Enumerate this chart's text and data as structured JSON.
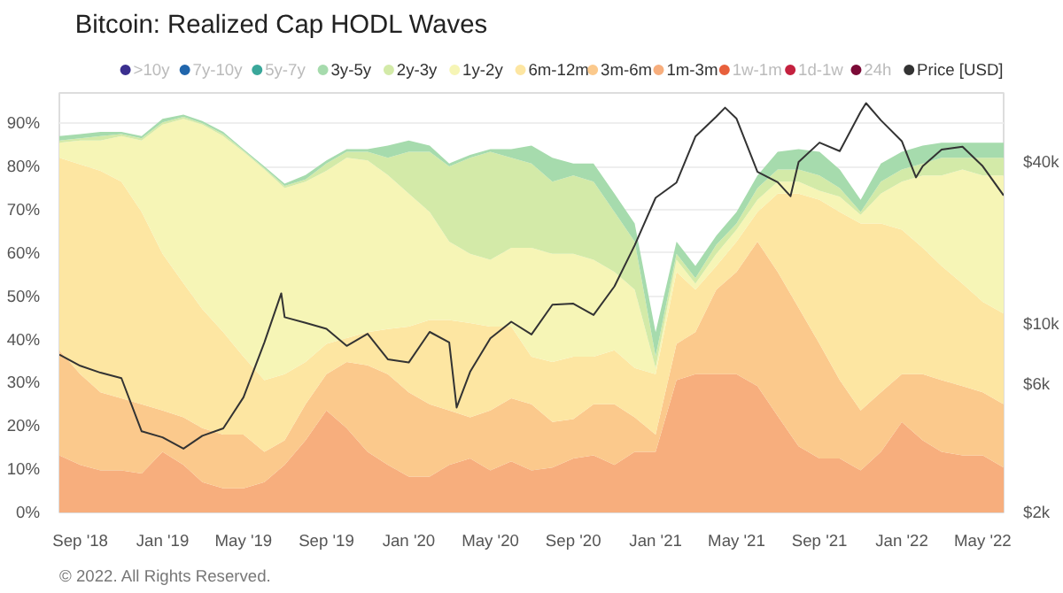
{
  "chart_data": {
    "type": "area",
    "stacked": true,
    "title": "Bitcoin: Realized Cap HODL Waves",
    "annotations": [
      "© 2022. All Rights Reserved."
    ],
    "x": [
      "2018-08-01",
      "2018-09-01",
      "2018-10-01",
      "2018-11-01",
      "2018-12-01",
      "2019-01-01",
      "2019-02-01",
      "2019-03-01",
      "2019-04-01",
      "2019-05-01",
      "2019-06-01",
      "2019-07-01",
      "2019-08-01",
      "2019-09-01",
      "2019-10-01",
      "2019-11-01",
      "2019-12-01",
      "2020-01-01",
      "2020-02-01",
      "2020-03-01",
      "2020-04-01",
      "2020-05-01",
      "2020-06-01",
      "2020-07-01",
      "2020-08-01",
      "2020-09-01",
      "2020-10-01",
      "2020-11-01",
      "2020-12-01",
      "2021-01-01",
      "2021-02-01",
      "2021-03-01",
      "2021-04-01",
      "2021-05-01",
      "2021-06-01",
      "2021-07-01",
      "2021-08-01",
      "2021-09-01",
      "2021-10-01",
      "2021-11-01",
      "2021-12-01",
      "2022-01-01",
      "2022-02-01",
      "2022-03-01",
      "2022-04-01",
      "2022-05-01",
      "2022-06-01"
    ],
    "xlim": [
      "2018-08-01",
      "2022-06-01"
    ],
    "xticks": [
      {
        "value": "2018-09-01",
        "label": "Sep '18"
      },
      {
        "value": "2019-01-01",
        "label": "Jan '19"
      },
      {
        "value": "2019-05-01",
        "label": "May '19"
      },
      {
        "value": "2019-09-01",
        "label": "Sep '19"
      },
      {
        "value": "2020-01-01",
        "label": "Jan '20"
      },
      {
        "value": "2020-05-01",
        "label": "May '20"
      },
      {
        "value": "2020-09-01",
        "label": "Sep '20"
      },
      {
        "value": "2021-01-01",
        "label": "Jan '21"
      },
      {
        "value": "2021-05-01",
        "label": "May '21"
      },
      {
        "value": "2021-09-01",
        "label": "Sep '21"
      },
      {
        "value": "2022-01-01",
        "label": "Jan '22"
      },
      {
        "value": "2022-05-01",
        "label": "May '22"
      }
    ],
    "ylim": [
      0,
      97
    ],
    "yticks": [
      {
        "value": 0,
        "label": "0%"
      },
      {
        "value": 10,
        "label": "10%"
      },
      {
        "value": 20,
        "label": "20%"
      },
      {
        "value": 30,
        "label": "30%"
      },
      {
        "value": 40,
        "label": "40%"
      },
      {
        "value": 50,
        "label": "50%"
      },
      {
        "value": 60,
        "label": "60%"
      },
      {
        "value": 70,
        "label": "70%"
      },
      {
        "value": 80,
        "label": "80%"
      },
      {
        "value": 90,
        "label": "90%"
      }
    ],
    "y2lim": [
      2000,
      72000
    ],
    "y2ticks": [
      {
        "value": 2000,
        "label": "$2k"
      },
      {
        "value": 6000,
        "label": "$6k"
      },
      {
        "value": 10000,
        "label": "$10k"
      },
      {
        "value": 40000,
        "label": "$40k"
      }
    ],
    "log": "y2",
    "grid": "y",
    "legend": "top",
    "series": [
      {
        "name": "24h",
        "color": "#7b0a37",
        "values": [
          null,
          null,
          null,
          null,
          null,
          null,
          null,
          null,
          null,
          null,
          null,
          null,
          null,
          null,
          null,
          null,
          null,
          null,
          null,
          null,
          null,
          null,
          null,
          null,
          null,
          null,
          null,
          null,
          null,
          null,
          null,
          null,
          null,
          null,
          null,
          null,
          null,
          null,
          null,
          null,
          null,
          null,
          null,
          null,
          null,
          null,
          null
        ]
      },
      {
        "name": "1d-1w",
        "color": "#c4213f",
        "values": [
          null,
          null,
          null,
          null,
          null,
          null,
          null,
          null,
          null,
          null,
          null,
          null,
          null,
          null,
          null,
          null,
          null,
          null,
          null,
          null,
          null,
          null,
          null,
          null,
          null,
          null,
          null,
          null,
          null,
          null,
          null,
          null,
          null,
          null,
          null,
          null,
          null,
          null,
          null,
          null,
          null,
          null,
          null,
          null,
          null,
          null,
          null
        ]
      },
      {
        "name": "1w-1m",
        "color": "#e8603c",
        "values": [
          null,
          null,
          null,
          null,
          null,
          null,
          null,
          null,
          null,
          null,
          null,
          null,
          null,
          null,
          null,
          null,
          null,
          null,
          null,
          null,
          null,
          null,
          null,
          null,
          null,
          null,
          null,
          null,
          null,
          null,
          null,
          null,
          null,
          null,
          null,
          null,
          null,
          null,
          null,
          null,
          null,
          null,
          null,
          null,
          null,
          null,
          null
        ]
      },
      {
        "name": "1m-3m",
        "color": "#f7ae7d",
        "values": [
          13.2,
          11,
          9.7,
          9.7,
          9,
          14,
          11,
          7,
          5.6,
          5.6,
          7,
          11,
          16.7,
          23.6,
          19.5,
          14,
          11,
          8.3,
          8.3,
          11,
          12.5,
          9.7,
          11.8,
          9.7,
          10.4,
          12.5,
          13.2,
          11,
          14,
          14,
          30.6,
          32,
          32,
          32,
          29.2,
          22.3,
          15.3,
          12.5,
          12.5,
          9.7,
          14,
          20.9,
          16.7,
          14,
          13.2,
          13.2,
          10.4
        ]
      },
      {
        "name": "3m-6m",
        "color": "#fbc98c",
        "values": [
          24.3,
          21,
          18.1,
          16.7,
          16,
          9.6,
          11,
          12.5,
          12.4,
          12.4,
          7,
          5.7,
          8.3,
          8.4,
          15.3,
          20,
          21,
          19.5,
          16.7,
          12.6,
          9.5,
          13.9,
          14.6,
          15.3,
          10.5,
          9.1,
          11.8,
          14,
          8,
          4,
          8.4,
          9.7,
          19.5,
          23.6,
          33.4,
          33.3,
          32,
          26.5,
          18.1,
          13.9,
          13.8,
          11.1,
          15.3,
          16.6,
          16,
          14.6,
          14.6
        ]
      },
      {
        "name": "6m-12m",
        "color": "#fde6a2",
        "values": [
          44.5,
          48.5,
          51.2,
          50.1,
          44.5,
          36.2,
          31,
          27.5,
          23.7,
          18,
          16.6,
          15.3,
          9.8,
          7,
          5.5,
          7.7,
          10.4,
          15.2,
          19.5,
          20.9,
          21.8,
          19.4,
          16.6,
          11,
          13.9,
          14.4,
          11,
          12.5,
          11.4,
          14,
          16.6,
          9.8,
          5.5,
          7,
          6.9,
          18.1,
          26.4,
          33.3,
          38.9,
          43.2,
          39,
          33.4,
          29.2,
          26.4,
          23.7,
          20.9,
          21
        ]
      },
      {
        "name": "1y-2y",
        "color": "#f6f5b6",
        "values": [
          3.5,
          5.5,
          7,
          10.5,
          16.5,
          29.9,
          38,
          42.7,
          45.3,
          47.4,
          48.7,
          43,
          41.7,
          40,
          41.7,
          39.7,
          35.6,
          30.7,
          25,
          18.1,
          16,
          15.4,
          18.2,
          25.2,
          25,
          23.8,
          22.4,
          18.1,
          18.1,
          1.4,
          2.8,
          1.4,
          2.8,
          2.8,
          2.8,
          2.8,
          2.8,
          2.1,
          3.5,
          2,
          6.9,
          11.1,
          16.7,
          20.9,
          26.4,
          29.2,
          31.9
        ]
      },
      {
        "name": "2y-3y",
        "color": "#d3eaa8",
        "values": [
          0.5,
          0.5,
          1,
          0.5,
          0.5,
          0.5,
          0.5,
          0.3,
          0.5,
          0.3,
          0.3,
          0.5,
          0.5,
          1.7,
          1.4,
          2,
          4,
          9.7,
          13.9,
          17.4,
          22.2,
          25,
          20.8,
          19.5,
          16.7,
          18.1,
          18.1,
          13.9,
          11.1,
          2.7,
          1.4,
          1.3,
          2.1,
          1.4,
          2.7,
          2.8,
          2.8,
          3.5,
          2,
          0.7,
          2.8,
          2.8,
          2.8,
          4.1,
          2.7,
          4.1,
          4.1
        ]
      },
      {
        "name": "3y-5y",
        "color": "#a6dbad",
        "values": [
          1,
          1,
          1,
          0.5,
          0.5,
          0.8,
          0.5,
          0.5,
          0.5,
          0.3,
          0.4,
          0.5,
          1,
          0.7,
          0.6,
          0.6,
          2.8,
          2.6,
          1.4,
          0.7,
          0.7,
          0.6,
          2,
          4.1,
          5.5,
          2.8,
          4.2,
          4.2,
          4.2,
          5.6,
          2.8,
          2.8,
          2.1,
          2.7,
          2.9,
          4.1,
          4.7,
          5.5,
          4.3,
          2.8,
          4.2,
          4.1,
          4.1,
          3.5,
          3.5,
          3.5,
          3.5
        ]
      },
      {
        "name": "5y-7y",
        "color": "#3aa79a",
        "values": [
          null,
          null,
          null,
          null,
          null,
          null,
          null,
          null,
          null,
          null,
          null,
          null,
          null,
          null,
          null,
          null,
          null,
          null,
          null,
          null,
          null,
          null,
          null,
          null,
          null,
          null,
          null,
          null,
          null,
          null,
          null,
          null,
          null,
          null,
          null,
          null,
          null,
          null,
          null,
          null,
          null,
          null,
          null,
          null,
          null,
          null,
          null
        ]
      },
      {
        "name": "7y-10y",
        "color": "#2166ac",
        "values": [
          null,
          null,
          null,
          null,
          null,
          null,
          null,
          null,
          null,
          null,
          null,
          null,
          null,
          null,
          null,
          null,
          null,
          null,
          null,
          null,
          null,
          null,
          null,
          null,
          null,
          null,
          null,
          null,
          null,
          null,
          null,
          null,
          null,
          null,
          null,
          null,
          null,
          null,
          null,
          null,
          null,
          null,
          null,
          null,
          null,
          null,
          null
        ]
      },
      {
        "name": ">10y",
        "color": "#3b2f8f",
        "values": [
          null,
          null,
          null,
          null,
          null,
          null,
          null,
          null,
          null,
          null,
          null,
          null,
          null,
          null,
          null,
          null,
          null,
          null,
          null,
          null,
          null,
          null,
          null,
          null,
          null,
          null,
          null,
          null,
          null,
          null,
          null,
          null,
          null,
          null,
          null,
          null,
          null,
          null,
          null,
          null,
          null,
          null,
          null,
          null,
          null,
          null,
          null
        ]
      },
      {
        "name": "Price [USD]",
        "color": "#333333",
        "type": "line",
        "axis": "y2",
        "x": [
          "2018-08-01",
          "2018-09-01",
          "2018-10-01",
          "2018-11-01",
          "2018-12-01",
          "2019-01-01",
          "2019-02-01",
          "2019-03-01",
          "2019-04-01",
          "2019-05-01",
          "2019-06-01",
          "2019-06-26",
          "2019-07-01",
          "2019-08-01",
          "2019-09-01",
          "2019-10-01",
          "2019-11-01",
          "2019-12-01",
          "2020-01-01",
          "2020-02-01",
          "2020-03-01",
          "2020-03-12",
          "2020-04-01",
          "2020-05-01",
          "2020-06-01",
          "2020-07-01",
          "2020-08-01",
          "2020-09-01",
          "2020-10-01",
          "2020-11-01",
          "2020-12-01",
          "2021-01-01",
          "2021-02-01",
          "2021-03-01",
          "2021-04-01",
          "2021-04-14",
          "2021-05-01",
          "2021-06-01",
          "2021-07-01",
          "2021-07-20",
          "2021-08-01",
          "2021-09-01",
          "2021-10-01",
          "2021-11-01",
          "2021-11-09",
          "2021-12-01",
          "2022-01-01",
          "2022-01-22",
          "2022-02-01",
          "2022-03-01",
          "2022-04-01",
          "2022-05-01",
          "2022-06-01"
        ],
        "values": [
          7700,
          7000,
          6600,
          6300,
          4000,
          3800,
          3450,
          3850,
          4100,
          5350,
          8550,
          13000,
          10600,
          10100,
          9600,
          8300,
          9200,
          7400,
          7200,
          9350,
          8550,
          4900,
          6650,
          8850,
          10200,
          9150,
          11800,
          11900,
          10800,
          13800,
          19600,
          29400,
          33500,
          49600,
          58800,
          63500,
          57800,
          36700,
          33600,
          29800,
          39900,
          47100,
          43800,
          61300,
          66000,
          57000,
          47700,
          35000,
          38500,
          44400,
          45500,
          38500,
          30000
        ]
      }
    ]
  }
}
